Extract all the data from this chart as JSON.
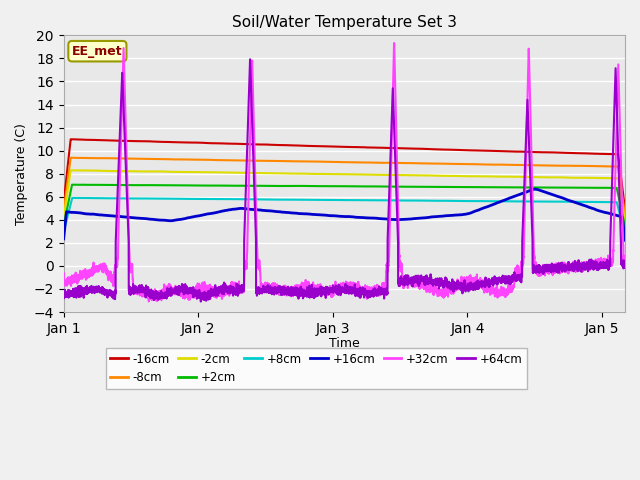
{
  "title": "Soil/Water Temperature Set 3",
  "xlabel": "Time",
  "ylabel": "Temperature (C)",
  "ylim": [
    -4,
    20
  ],
  "yticks": [
    -4,
    -2,
    0,
    2,
    4,
    6,
    8,
    10,
    12,
    14,
    16,
    18,
    20
  ],
  "xlim": [
    0,
    4.17
  ],
  "xtick_positions": [
    0,
    1,
    2,
    3,
    4
  ],
  "xtick_labels": [
    "Jan 1",
    "Jan 2",
    "Jan 3",
    "Jan 4",
    "Jan 5"
  ],
  "series": {
    "-16cm": {
      "color": "#cc0000",
      "lw": 1.5
    },
    "-8cm": {
      "color": "#ff8800",
      "lw": 1.5
    },
    "-2cm": {
      "color": "#dddd00",
      "lw": 1.5
    },
    "+2cm": {
      "color": "#00bb00",
      "lw": 1.5
    },
    "+8cm": {
      "color": "#00cccc",
      "lw": 1.5
    },
    "+16cm": {
      "color": "#0000cc",
      "lw": 2.0
    },
    "+32cm": {
      "color": "#ff44ff",
      "lw": 1.5
    },
    "+64cm": {
      "color": "#9900cc",
      "lw": 1.5
    }
  },
  "legend_label": "EE_met",
  "legend_bg": "#ffffcc",
  "legend_border": "#999900",
  "fig_bg": "#f0f0f0",
  "ax_bg": "#e8e8e8",
  "grid_color": "#ffffff"
}
